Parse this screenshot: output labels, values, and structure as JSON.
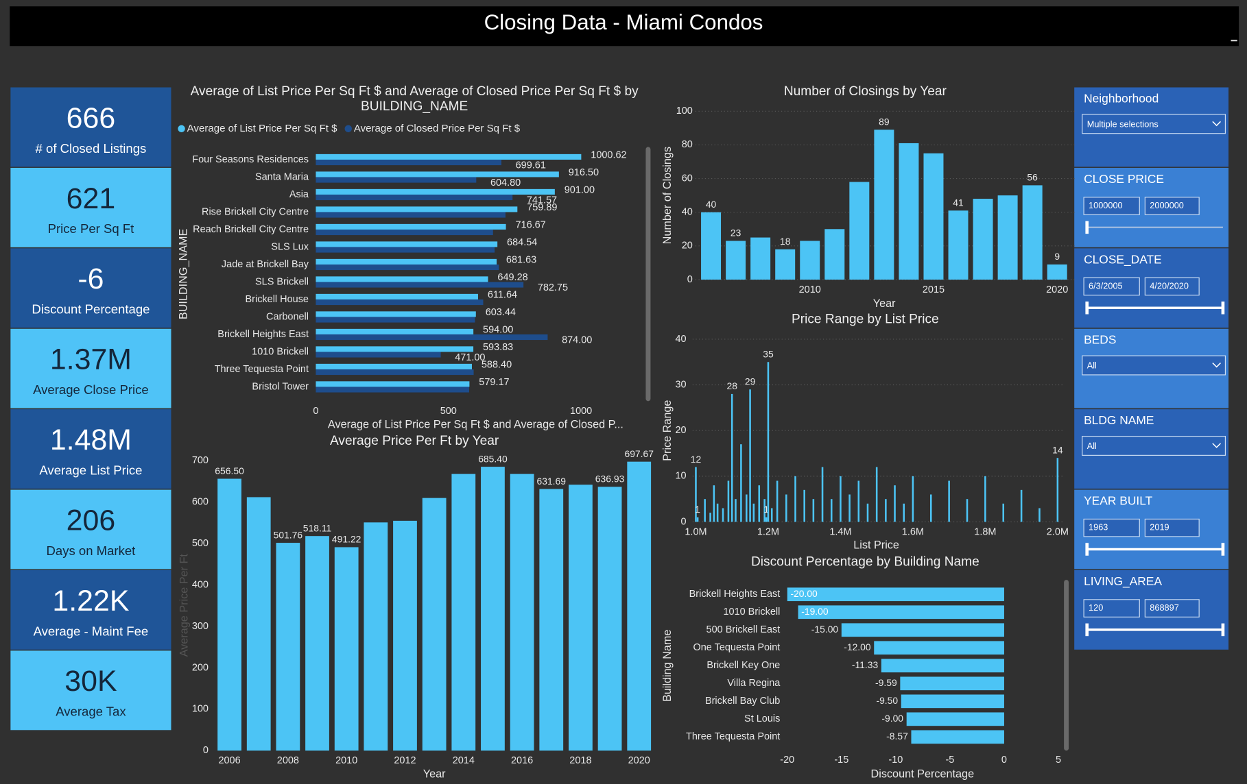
{
  "header": {
    "title": "Closing Data - Miami Condos"
  },
  "kpis": [
    {
      "value": "666",
      "label": "# of Closed Listings"
    },
    {
      "value": "621",
      "label": "Price Per Sq Ft"
    },
    {
      "value": "-6",
      "label": "Discount Percentage"
    },
    {
      "value": "1.37M",
      "label": "Average Close Price"
    },
    {
      "value": "1.48M",
      "label": "Average List Price"
    },
    {
      "value": "206",
      "label": "Days on Market"
    },
    {
      "value": "1.22K",
      "label": "Average - Maint Fee"
    },
    {
      "value": "30K",
      "label": "Average Tax"
    }
  ],
  "filters": [
    {
      "title": "Neighborhood",
      "selection": "Multiple selections"
    },
    {
      "title": "CLOSE PRICE",
      "min": "1000000",
      "max": "2000000"
    },
    {
      "title": "CLOSE_DATE",
      "min": "6/3/2005",
      "max": "4/20/2020"
    },
    {
      "title": "BEDS",
      "selection": "All"
    },
    {
      "title": "BLDG NAME",
      "selection": "All"
    },
    {
      "title": "YEAR BUILT",
      "min": "1963",
      "max": "2019"
    },
    {
      "title": "LIVING_AREA",
      "min": "120",
      "max": "868897"
    }
  ],
  "chart_data": [
    {
      "type": "bar",
      "orientation": "horizontal",
      "title": "Average of List Price Per Sq Ft $ and Average of Closed Price Per Sq Ft $ by BUILDING_NAME",
      "x_label": "Average of List Price Per Sq Ft $ and Average of Closed P...",
      "y_label": "BUILDING_NAME",
      "categories": [
        "Four Seasons Residences",
        "Santa Maria",
        "Asia",
        "Rise Brickell City Centre",
        "Reach Brickell City Centre",
        "SLS Lux",
        "Jade at Brickell Bay",
        "SLS Brickell",
        "Brickell House",
        "Carbonell",
        "Brickell Heights East",
        "1010 Brickell",
        "Three Tequesta Point",
        "Bristol Tower"
      ],
      "series": [
        {
          "name": "Average of List Price Per Sq Ft $",
          "color": "#4cc4f5",
          "values": [
            1000.62,
            916.5,
            901.0,
            759.89,
            716.67,
            684.54,
            681.63,
            649.28,
            611.64,
            603.44,
            594.0,
            593.83,
            588.4,
            579.17
          ],
          "value_labels": [
            "1000.62",
            "916.50",
            "901.00",
            "759.89",
            "716.67",
            "684.54",
            "681.63",
            "649.28",
            "611.64",
            "603.44",
            "594.00",
            "593.83",
            "588.40",
            "579.17"
          ]
        },
        {
          "name": "Average of Closed Price Per Sq Ft $",
          "color": "#1e4d8c",
          "values": [
            699.61,
            604.8,
            741.57,
            715,
            668,
            674,
            690,
            782.75,
            631,
            600,
            874.0,
            471.0,
            595,
            578
          ],
          "value_labels": [
            "699.61",
            "604.80",
            "741.57",
            null,
            null,
            null,
            null,
            "782.75",
            null,
            null,
            "874.00",
            "471.00",
            null,
            null
          ]
        }
      ],
      "legend": "top-left",
      "xlim": [
        0,
        1100
      ],
      "xticks": [
        0,
        500,
        1000
      ],
      "grid": false
    },
    {
      "type": "bar",
      "title": "Average Price Per Ft by Year",
      "x_label": "Year",
      "y_label": "Average Price Per Ft",
      "categories": [
        "2006",
        null,
        "2008",
        null,
        "2010",
        null,
        "2012",
        null,
        "2014",
        null,
        "2016",
        null,
        "2018",
        null,
        "2020"
      ],
      "values": [
        656.5,
        612,
        501.76,
        518.11,
        491.22,
        551,
        555,
        610,
        668,
        685.4,
        668,
        631.69,
        642,
        636.93,
        697.67
      ],
      "value_labels": [
        "656.50",
        null,
        "501.76",
        "518.11",
        "491.22",
        null,
        null,
        null,
        null,
        "685.40",
        null,
        "631.69",
        null,
        "636.93",
        "697.67"
      ],
      "color": "#4cc4f5",
      "ylim": [
        0,
        700
      ],
      "yticks": [
        0,
        100,
        200,
        300,
        400,
        500,
        600,
        700
      ],
      "grid": false
    },
    {
      "type": "bar",
      "title": "Number of Closings by Year",
      "x_label": "Year",
      "y_label": "Number of Closings",
      "categories": [
        null,
        null,
        null,
        null,
        "2010",
        null,
        null,
        null,
        null,
        "2015",
        null,
        null,
        null,
        null,
        "2020"
      ],
      "values": [
        40,
        23,
        25,
        18,
        23,
        30,
        58,
        89,
        81,
        75,
        41,
        48,
        50,
        56,
        9
      ],
      "value_labels": [
        "40",
        "23",
        null,
        "18",
        null,
        null,
        null,
        "89",
        null,
        null,
        "41",
        null,
        null,
        "56",
        "9"
      ],
      "color": "#4cc4f5",
      "ylim": [
        0,
        100
      ],
      "yticks": [
        0,
        20,
        40,
        60,
        80,
        100
      ],
      "grid": true
    },
    {
      "type": "bar",
      "title": "Price Range by List Price",
      "x_label": "List Price",
      "y_label": "Price Range",
      "x": [
        1000000,
        1005000,
        1025000,
        1040000,
        1050000,
        1060000,
        1075000,
        1090000,
        1100000,
        1110000,
        1125000,
        1140000,
        1150000,
        1160000,
        1175000,
        1190000,
        1195000,
        1200000,
        1210000,
        1225000,
        1250000,
        1275000,
        1300000,
        1325000,
        1350000,
        1375000,
        1400000,
        1425000,
        1450000,
        1475000,
        1500000,
        1525000,
        1550000,
        1575000,
        1600000,
        1650000,
        1700000,
        1750000,
        1800000,
        1850000,
        1900000,
        1950000,
        2000000
      ],
      "values": [
        12,
        1,
        5,
        2,
        8,
        4,
        3,
        9,
        28,
        5,
        17,
        6,
        29,
        4,
        8,
        5,
        1,
        35,
        3,
        9,
        6,
        10,
        7,
        5,
        12,
        5,
        10,
        6,
        9,
        4,
        12,
        5,
        8,
        4,
        10,
        6,
        9,
        5,
        10,
        4,
        7,
        3,
        14
      ],
      "value_labels": [
        "12",
        "1",
        null,
        null,
        null,
        null,
        null,
        null,
        "28",
        null,
        null,
        null,
        "29",
        null,
        null,
        null,
        "1",
        "35",
        null,
        null,
        null,
        null,
        null,
        null,
        null,
        null,
        null,
        null,
        null,
        null,
        null,
        null,
        null,
        null,
        null,
        null,
        null,
        null,
        null,
        null,
        null,
        null,
        "14"
      ],
      "color": "#4cc4f5",
      "xlim": [
        1000000,
        2000000
      ],
      "xticks": [
        {
          "value": 1000000,
          "label": "1.0M"
        },
        {
          "value": 1200000,
          "label": "1.2M"
        },
        {
          "value": 1400000,
          "label": "1.4M"
        },
        {
          "value": 1600000,
          "label": "1.6M"
        },
        {
          "value": 1800000,
          "label": "1.8M"
        },
        {
          "value": 2000000,
          "label": "2.0M"
        }
      ],
      "ylim": [
        0,
        40
      ],
      "yticks": [
        0,
        10,
        20,
        30,
        40
      ],
      "grid": true
    },
    {
      "type": "bar",
      "orientation": "horizontal",
      "title": "Discount Percentage by Building Name",
      "x_label": "Discount Percentage",
      "y_label": "Building Name",
      "categories": [
        "Brickell Heights East",
        "1010 Brickell",
        "500 Brickell East",
        "One Tequesta Point",
        "Brickell Key One",
        "Villa Regina",
        "Brickell Bay Club",
        "St Louis",
        "Three Tequesta Point"
      ],
      "values": [
        -20.0,
        -19.0,
        -15.0,
        -12.0,
        -11.33,
        -9.59,
        -9.5,
        -9.0,
        -8.57
      ],
      "value_labels": [
        "-20.00",
        "-19.00",
        "-15.00",
        "-12.00",
        "-11.33",
        "-9.59",
        "-9.50",
        "-9.00",
        "-8.57"
      ],
      "color": "#4cc4f5",
      "xlim": [
        -20,
        5
      ],
      "xticks": [
        -20,
        -15,
        -10,
        -5,
        0,
        5
      ],
      "grid": false
    }
  ]
}
